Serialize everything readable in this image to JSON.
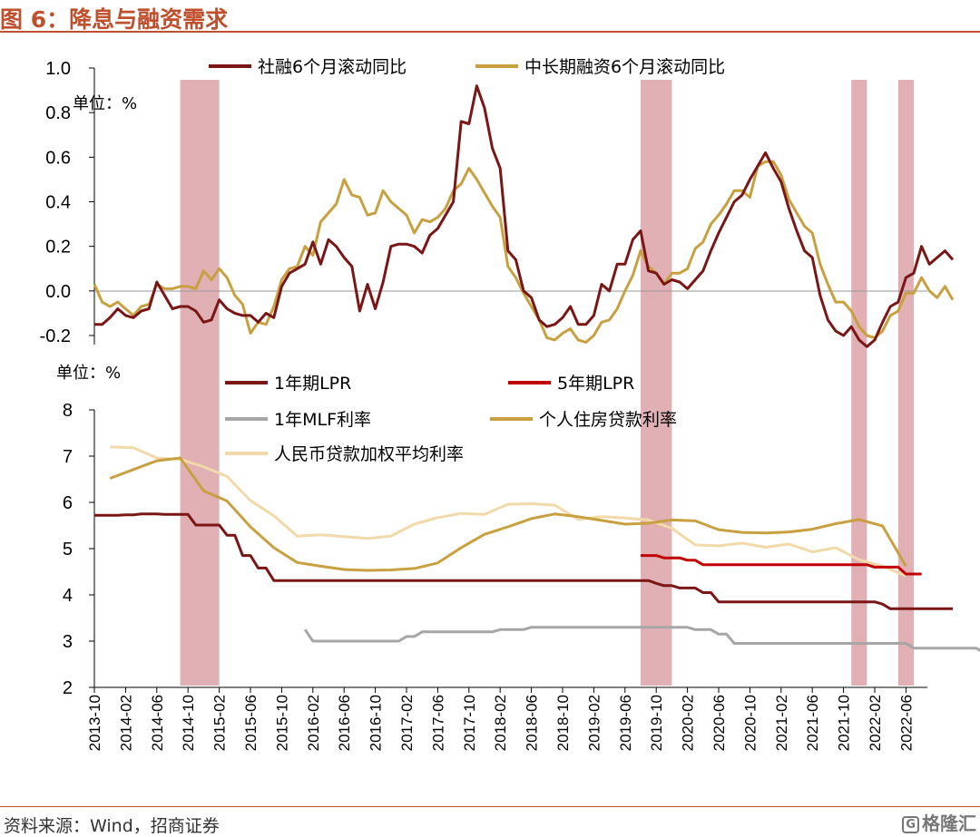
{
  "figure": {
    "title": "图 6：降息与融资需求",
    "source": "资料来源：Wind，招商证券",
    "watermark": "格隆汇",
    "watermark_logo": "G"
  },
  "colors": {
    "dark_red": "#7a1616",
    "red": "#c00000",
    "gray": "#a6a6a6",
    "gold": "#c8a040",
    "light": "#f1d9a9",
    "band": "#e0b0b4",
    "title": "#c0502d"
  },
  "chart_data": [
    {
      "type": "line",
      "title": "",
      "unit_label": "单位：%",
      "ylim": [
        -0.2,
        1.0
      ],
      "yticks": [
        "1.0",
        "0.8",
        "0.6",
        "0.4",
        "0.2",
        "0.0",
        "-0.2"
      ],
      "grid": false,
      "legend": "top",
      "x_start": "2013-10",
      "series": [
        {
          "name": "社融6个月滚动同比",
          "color": "#7a1616",
          "values": [
            -0.15,
            -0.15,
            -0.12,
            -0.08,
            -0.11,
            -0.12,
            -0.09,
            -0.08,
            0.04,
            -0.02,
            -0.08,
            -0.07,
            -0.07,
            -0.09,
            -0.14,
            -0.13,
            -0.04,
            -0.08,
            -0.1,
            -0.11,
            -0.11,
            -0.14,
            -0.1,
            -0.12,
            0.02,
            0.08,
            0.1,
            0.12,
            0.22,
            0.12,
            0.23,
            0.2,
            0.15,
            0.11,
            -0.09,
            0.03,
            -0.08,
            0.04,
            0.2,
            0.21,
            0.21,
            0.2,
            0.17,
            0.25,
            0.28,
            0.34,
            0.4,
            0.76,
            0.75,
            0.92,
            0.82,
            0.64,
            0.55,
            0.18,
            0.14,
            0.0,
            -0.03,
            -0.13,
            -0.16,
            -0.15,
            -0.12,
            -0.07,
            -0.15,
            -0.15,
            -0.11,
            0.03,
            0.0,
            0.12,
            0.12,
            0.23,
            0.27,
            0.09,
            0.08,
            0.03,
            0.05,
            0.04,
            0.01,
            0.05,
            0.09,
            0.18,
            0.26,
            0.33,
            0.4,
            0.43,
            0.5,
            0.56,
            0.62,
            0.55,
            0.49,
            0.37,
            0.27,
            0.18,
            0.15,
            -0.02,
            -0.13,
            -0.18,
            -0.2,
            -0.16,
            -0.22,
            -0.25,
            -0.22,
            -0.14,
            -0.07,
            -0.05,
            0.06,
            0.08,
            0.2,
            0.12,
            0.15,
            0.18,
            0.14
          ]
        },
        {
          "name": "中长期融资6个月滚动同比",
          "color": "#c8a040",
          "values": [
            0.03,
            -0.05,
            -0.07,
            -0.05,
            -0.08,
            -0.11,
            -0.07,
            -0.06,
            0.03,
            0.01,
            0.01,
            0.02,
            0.02,
            0.01,
            0.09,
            0.05,
            0.1,
            0.06,
            -0.02,
            -0.06,
            -0.19,
            -0.14,
            -0.15,
            -0.07,
            0.05,
            0.1,
            0.11,
            0.2,
            0.16,
            0.31,
            0.35,
            0.39,
            0.5,
            0.43,
            0.42,
            0.34,
            0.35,
            0.45,
            0.4,
            0.37,
            0.34,
            0.26,
            0.32,
            0.31,
            0.33,
            0.37,
            0.45,
            0.48,
            0.55,
            0.5,
            0.44,
            0.38,
            0.33,
            0.11,
            0.06,
            -0.01,
            -0.07,
            -0.13,
            -0.21,
            -0.22,
            -0.19,
            -0.17,
            -0.22,
            -0.23,
            -0.2,
            -0.14,
            -0.13,
            -0.08,
            0.0,
            0.07,
            0.18,
            0.11,
            0.08,
            0.03,
            0.08,
            0.08,
            0.1,
            0.19,
            0.22,
            0.3,
            0.34,
            0.39,
            0.45,
            0.45,
            0.42,
            0.56,
            0.58,
            0.58,
            0.52,
            0.41,
            0.35,
            0.29,
            0.26,
            0.12,
            0.03,
            -0.05,
            -0.05,
            -0.09,
            -0.16,
            -0.2,
            -0.21,
            -0.18,
            -0.11,
            -0.09,
            -0.01,
            -0.01,
            0.06,
            0.0,
            -0.03,
            0.02,
            -0.04
          ]
        }
      ]
    },
    {
      "type": "line",
      "title": "",
      "unit_label": "单位：%",
      "ylim": [
        2,
        8
      ],
      "yticks": [
        "8",
        "7",
        "6",
        "5",
        "4",
        "3",
        "2"
      ],
      "grid": false,
      "legend": "top",
      "x_start": "2013-10",
      "xticks": [
        "2013-10",
        "2014-02",
        "2014-06",
        "2014-10",
        "2015-02",
        "2015-06",
        "2015-10",
        "2016-02",
        "2016-06",
        "2016-10",
        "2017-02",
        "2017-06",
        "2017-10",
        "2018-02",
        "2018-06",
        "2018-10",
        "2019-02",
        "2019-06",
        "2019-10",
        "2020-02",
        "2020-06",
        "2020-10",
        "2021-02",
        "2021-06",
        "2021-10",
        "2022-02",
        "2022-06"
      ],
      "shaded_periods": [
        [
          "2014-09",
          "2015-02"
        ],
        [
          "2019-08",
          "2019-12"
        ],
        [
          "2021-11",
          "2022-01"
        ],
        [
          "2022-05",
          "2022-07"
        ]
      ],
      "series": [
        {
          "name": "1年期LPR",
          "color": "#7a1616",
          "start": "2013-10",
          "values": [
            5.72,
            5.72,
            5.72,
            5.72,
            5.73,
            5.73,
            5.75,
            5.75,
            5.75,
            5.74,
            5.74,
            5.74,
            5.74,
            5.51,
            5.51,
            5.51,
            5.51,
            5.29,
            5.29,
            4.85,
            4.85,
            4.58,
            4.58,
            4.31,
            4.31,
            4.31,
            4.31,
            4.31,
            4.31,
            4.31,
            4.31,
            4.31,
            4.31,
            4.31,
            4.31,
            4.31,
            4.31,
            4.31,
            4.31,
            4.31,
            4.31,
            4.31,
            4.31,
            4.31,
            4.31,
            4.31,
            4.31,
            4.31,
            4.31,
            4.31,
            4.31,
            4.31,
            4.31,
            4.31,
            4.31,
            4.31,
            4.31,
            4.31,
            4.31,
            4.31,
            4.31,
            4.31,
            4.31,
            4.31,
            4.31,
            4.31,
            4.31,
            4.31,
            4.31,
            4.31,
            4.31,
            4.31,
            4.25,
            4.2,
            4.2,
            4.15,
            4.15,
            4.15,
            4.05,
            4.05,
            3.85,
            3.85,
            3.85,
            3.85,
            3.85,
            3.85,
            3.85,
            3.85,
            3.85,
            3.85,
            3.85,
            3.85,
            3.85,
            3.85,
            3.85,
            3.85,
            3.85,
            3.85,
            3.85,
            3.85,
            3.85,
            3.8,
            3.7,
            3.7,
            3.7,
            3.7,
            3.7,
            3.7,
            3.7,
            3.7,
            3.7
          ]
        },
        {
          "name": "5年期LPR",
          "color": "#c00000",
          "start": "2019-08",
          "values": [
            4.85,
            4.85,
            4.85,
            4.8,
            4.8,
            4.8,
            4.75,
            4.75,
            4.65,
            4.65,
            4.65,
            4.65,
            4.65,
            4.65,
            4.65,
            4.65,
            4.65,
            4.65,
            4.65,
            4.65,
            4.65,
            4.65,
            4.65,
            4.65,
            4.65,
            4.65,
            4.65,
            4.65,
            4.65,
            4.65,
            4.6,
            4.6,
            4.6,
            4.6,
            4.45,
            4.45,
            4.45
          ]
        },
        {
          "name": "1年MLF利率",
          "color": "#a6a6a6",
          "start": "2016-01",
          "values": [
            3.25,
            3.0,
            3.0,
            3.0,
            3.0,
            3.0,
            3.0,
            3.0,
            3.0,
            3.0,
            3.0,
            3.0,
            3.0,
            3.1,
            3.1,
            3.2,
            3.2,
            3.2,
            3.2,
            3.2,
            3.2,
            3.2,
            3.2,
            3.2,
            3.2,
            3.25,
            3.25,
            3.25,
            3.25,
            3.3,
            3.3,
            3.3,
            3.3,
            3.3,
            3.3,
            3.3,
            3.3,
            3.3,
            3.3,
            3.3,
            3.3,
            3.3,
            3.3,
            3.3,
            3.3,
            3.3,
            3.3,
            3.3,
            3.3,
            3.3,
            3.25,
            3.25,
            3.25,
            3.15,
            3.15,
            2.95,
            2.95,
            2.95,
            2.95,
            2.95,
            2.95,
            2.95,
            2.95,
            2.95,
            2.95,
            2.95,
            2.95,
            2.95,
            2.95,
            2.95,
            2.95,
            2.95,
            2.95,
            2.95,
            2.95,
            2.95,
            2.95,
            2.95,
            2.85,
            2.85,
            2.85,
            2.85,
            2.85,
            2.85,
            2.85,
            2.85,
            2.85,
            2.75
          ]
        },
        {
          "name": "个人住房贷款利率",
          "color": "#c8a040",
          "x": [
            "2013-12",
            "2014-03",
            "2014-06",
            "2014-09",
            "2014-12",
            "2015-03",
            "2015-06",
            "2015-09",
            "2015-12",
            "2016-03",
            "2016-06",
            "2016-09",
            "2016-12",
            "2017-03",
            "2017-06",
            "2017-09",
            "2017-12",
            "2018-03",
            "2018-06",
            "2018-09",
            "2018-12",
            "2019-03",
            "2019-06",
            "2019-09",
            "2019-12",
            "2020-03",
            "2020-06",
            "2020-09",
            "2020-12",
            "2021-03",
            "2021-06",
            "2021-09",
            "2021-12",
            "2022-03",
            "2022-06"
          ],
          "values": [
            6.52,
            6.71,
            6.9,
            6.96,
            6.25,
            6.03,
            5.47,
            5.02,
            4.7,
            4.62,
            4.55,
            4.53,
            4.54,
            4.57,
            4.69,
            5.02,
            5.31,
            5.47,
            5.65,
            5.75,
            5.69,
            5.61,
            5.53,
            5.55,
            5.62,
            5.6,
            5.41,
            5.35,
            5.34,
            5.36,
            5.42,
            5.54,
            5.63,
            5.49,
            4.62
          ]
        },
        {
          "name": "人民币贷款加权平均利率",
          "color": "#f1d9a9",
          "x": [
            "2013-12",
            "2014-03",
            "2014-06",
            "2014-09",
            "2014-12",
            "2015-03",
            "2015-06",
            "2015-09",
            "2015-12",
            "2016-03",
            "2016-06",
            "2016-09",
            "2016-12",
            "2017-03",
            "2017-06",
            "2017-09",
            "2017-12",
            "2018-03",
            "2018-06",
            "2018-09",
            "2018-12",
            "2019-03",
            "2019-06",
            "2019-09",
            "2019-12",
            "2020-03",
            "2020-06",
            "2020-09",
            "2020-12",
            "2021-03",
            "2021-06",
            "2021-09",
            "2021-12",
            "2022-03",
            "2022-06"
          ],
          "values": [
            7.2,
            7.18,
            6.96,
            6.93,
            6.77,
            6.56,
            6.04,
            5.71,
            5.27,
            5.3,
            5.26,
            5.22,
            5.27,
            5.53,
            5.67,
            5.76,
            5.74,
            5.96,
            5.97,
            5.94,
            5.63,
            5.69,
            5.66,
            5.62,
            5.44,
            5.08,
            5.06,
            5.12,
            5.03,
            5.1,
            4.93,
            5.02,
            4.76,
            4.62,
            4.41
          ]
        }
      ]
    }
  ]
}
